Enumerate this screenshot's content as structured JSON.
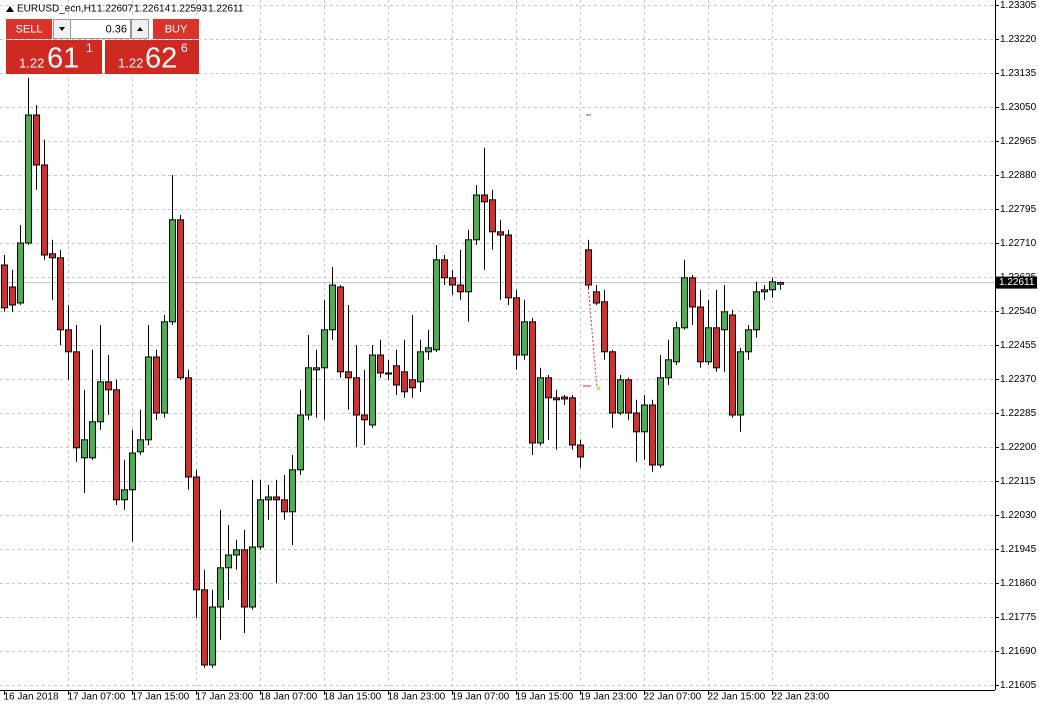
{
  "chart_data": {
    "type": "candlestick",
    "title": "EURUSD_ecn,H1",
    "categories": [
      "16 Jan 2018",
      null,
      null,
      null,
      null,
      null,
      null,
      null,
      "17 Jan 07:00",
      null,
      null,
      null,
      null,
      null,
      null,
      null,
      "17 Jan 15:00",
      null,
      null,
      null,
      null,
      null,
      null,
      null,
      "17 Jan 23:00",
      null,
      null,
      null,
      null,
      null,
      null,
      null,
      "18 Jan 07:00",
      null,
      null,
      null,
      null,
      null,
      null,
      null,
      "18 Jan 15:00",
      null,
      null,
      null,
      null,
      null,
      null,
      null,
      "18 Jan 23:00",
      null,
      null,
      null,
      null,
      null,
      null,
      null,
      "19 Jan 07:00",
      null,
      null,
      null,
      null,
      null,
      null,
      null,
      "19 Jan 15:00",
      null,
      null,
      null,
      null,
      null,
      null,
      null,
      "19 Jan 23:00",
      null,
      null,
      null,
      null,
      null,
      null,
      null,
      "22 Jan 07:00",
      null,
      null,
      null,
      null,
      null,
      null,
      null,
      "22 Jan 15:00",
      null,
      null,
      null,
      null,
      null,
      null,
      null,
      "22 Jan 23:00",
      null
    ],
    "open": [
      1.22655,
      1.226,
      1.2256,
      1.2271,
      1.2303,
      1.22905,
      1.22683,
      1.22673,
      1.22493,
      1.22438,
      1.22173,
      1.22173,
      1.22263,
      1.22363,
      1.22343,
      1.22068,
      1.22093,
      1.22188,
      1.22218,
      1.22425,
      1.22285,
      1.22513,
      1.22768,
      1.22373,
      1.22125,
      1.21843,
      1.21655,
      1.218,
      1.21898,
      1.2193,
      1.21943,
      1.218,
      1.2195,
      1.22068,
      1.22075,
      1.22068,
      1.22038,
      1.22143,
      1.2228,
      1.22393,
      1.22398,
      1.22493,
      1.226,
      1.22388,
      1.22373,
      1.2228,
      1.22255,
      1.2243,
      1.22385,
      1.22403,
      1.22388,
      1.22368,
      1.22363,
      1.22438,
      1.22443,
      1.22668,
      1.22623,
      1.22605,
      1.22588,
      1.22718,
      1.2283,
      1.22818,
      1.22738,
      1.2273,
      1.22573,
      1.2243,
      1.22513,
      1.2221,
      1.22373,
      1.22323,
      1.22325,
      1.22323,
      1.22205,
      1.22693,
      1.22588,
      1.22563,
      1.22438,
      1.22285,
      1.22368,
      1.22285,
      1.22238,
      1.22305,
      1.22155,
      1.22373,
      1.22413,
      1.22498,
      1.22623,
      1.2255,
      1.22413,
      1.22498,
      1.22493,
      1.2253,
      1.2228,
      1.22438,
      1.22493,
      1.22588,
      1.22593,
      1.22607
    ],
    "high": [
      1.2268,
      1.22643,
      1.22755,
      1.23123,
      1.23055,
      1.22968,
      1.22718,
      1.22693,
      1.22555,
      1.22505,
      1.22343,
      1.22443,
      1.22505,
      1.2243,
      1.22368,
      1.22168,
      1.22243,
      1.22293,
      1.22505,
      1.22443,
      1.2253,
      1.2288,
      1.2278,
      1.22393,
      1.22143,
      1.21893,
      1.21843,
      1.22043,
      1.22005,
      1.21968,
      1.21993,
      1.22118,
      1.22118,
      1.22105,
      1.22118,
      1.2213,
      1.2218,
      1.22343,
      1.2248,
      1.22443,
      1.22568,
      1.2265,
      1.22605,
      1.22555,
      1.22455,
      1.22393,
      1.22455,
      1.22468,
      1.22418,
      1.22443,
      1.22468,
      1.2253,
      1.22468,
      1.22493,
      1.22705,
      1.2268,
      1.22643,
      1.22693,
      1.22743,
      1.22855,
      1.22948,
      1.22843,
      1.22768,
      1.22743,
      1.22593,
      1.22568,
      1.22523,
      1.22398,
      1.2238,
      1.22343,
      1.2233,
      1.2233,
      1.22218,
      1.22718,
      1.22605,
      1.22593,
      1.22443,
      1.2238,
      1.22373,
      1.22318,
      1.2233,
      1.22318,
      1.2243,
      1.22468,
      1.22513,
      1.22668,
      1.2263,
      1.22593,
      1.22568,
      1.22593,
      1.22605,
      1.22543,
      1.22448,
      1.22505,
      1.22613,
      1.22605,
      1.22623,
      1.22614
    ],
    "low": [
      1.22538,
      1.22538,
      1.22555,
      1.22705,
      1.22843,
      1.22668,
      1.22568,
      1.22455,
      1.22368,
      1.22163,
      1.22085,
      1.22168,
      1.22243,
      1.2228,
      1.22055,
      1.22043,
      1.21963,
      1.2218,
      1.22205,
      1.22268,
      1.22273,
      1.22505,
      1.22368,
      1.22093,
      1.21773,
      1.21648,
      1.21648,
      1.21718,
      1.21818,
      1.21893,
      1.21735,
      1.21793,
      1.21943,
      1.22018,
      1.2186,
      1.22018,
      1.21955,
      1.2213,
      1.22268,
      1.22273,
      1.22268,
      1.22468,
      1.22373,
      1.22293,
      1.222,
      1.22205,
      1.22248,
      1.22373,
      1.22368,
      1.2233,
      1.22323,
      1.22323,
      1.22338,
      1.22418,
      1.22438,
      1.22605,
      1.2258,
      1.22568,
      1.22513,
      1.22705,
      1.22643,
      1.22693,
      1.22568,
      1.22555,
      1.22393,
      1.22418,
      1.2218,
      1.22203,
      1.22218,
      1.22193,
      1.22305,
      1.22193,
      1.22148,
      1.22593,
      1.22555,
      1.22418,
      1.22248,
      1.2228,
      1.22268,
      1.22163,
      1.22168,
      1.22138,
      1.22148,
      1.22355,
      1.22405,
      1.22493,
      1.22505,
      1.22398,
      1.22405,
      1.22388,
      1.22388,
      1.22273,
      1.22238,
      1.22418,
      1.22473,
      1.22568,
      1.22573,
      1.22593
    ],
    "close": [
      1.22548,
      1.22555,
      1.2271,
      1.2303,
      1.22905,
      1.2268,
      1.22673,
      1.22493,
      1.22438,
      1.22198,
      1.22218,
      1.22263,
      1.22363,
      1.22343,
      1.22068,
      1.22093,
      1.22185,
      1.22218,
      1.22425,
      1.22285,
      1.22513,
      1.22768,
      1.22373,
      1.22125,
      1.21843,
      1.21655,
      1.218,
      1.21898,
      1.2193,
      1.21943,
      1.218,
      1.2195,
      1.22068,
      1.22075,
      1.22068,
      1.22038,
      1.22143,
      1.2228,
      1.22398,
      1.22398,
      1.22493,
      1.22605,
      1.22388,
      1.22373,
      1.2228,
      1.22268,
      1.2243,
      1.22385,
      1.22383,
      1.22355,
      1.22338,
      1.22348,
      1.22438,
      1.22448,
      1.22668,
      1.22623,
      1.22605,
      1.22588,
      1.22718,
      1.2283,
      1.22813,
      1.22738,
      1.2273,
      1.22573,
      1.2243,
      1.22513,
      1.2221,
      1.22373,
      1.22323,
      1.22318,
      1.2232,
      1.22205,
      1.22175,
      1.22605,
      1.2256,
      1.22438,
      1.22285,
      1.22368,
      1.22285,
      1.22238,
      1.22305,
      1.22155,
      1.22373,
      1.22418,
      1.22498,
      1.22623,
      1.2255,
      1.22413,
      1.22498,
      1.22398,
      1.22538,
      1.2228,
      1.22438,
      1.22493,
      1.22588,
      1.22593,
      1.22613,
      1.22611
    ],
    "up_color": "#4caf50",
    "down_color": "#d32f2f",
    "ylim": [
      1.215925,
      1.233175
    ],
    "yticks": [
      1.23305,
      {
        "value": 1.2322,
        "label": "1.23220"
      },
      1.23135,
      {
        "value": 1.2305,
        "label": "1.23050"
      },
      1.22965,
      {
        "value": 1.2288,
        "label": "1.22880"
      },
      1.22795,
      {
        "value": 1.2271,
        "label": "1.22710"
      },
      1.22625,
      {
        "value": 1.2254,
        "label": "1.22540"
      },
      1.22455,
      {
        "value": 1.2237,
        "label": "1.22370"
      },
      1.22285,
      {
        "value": 1.222,
        "label": "1.22200"
      },
      1.22115,
      {
        "value": 1.2203,
        "label": "1.22030"
      },
      1.21945,
      {
        "value": 1.2186,
        "label": "1.21860"
      },
      1.21775,
      {
        "value": 1.2169,
        "label": "1.21690"
      },
      1.21605
    ],
    "price_label": 1.22611,
    "grid": true
  },
  "trade_panel": {
    "sell_label": "SELL",
    "buy_label": "BUY",
    "lot": "0.36",
    "sell_price": {
      "prefix": "1.22",
      "big": "61",
      "point": "1"
    },
    "buy_price": {
      "prefix": "1.22",
      "big": "62",
      "point": "6"
    }
  }
}
